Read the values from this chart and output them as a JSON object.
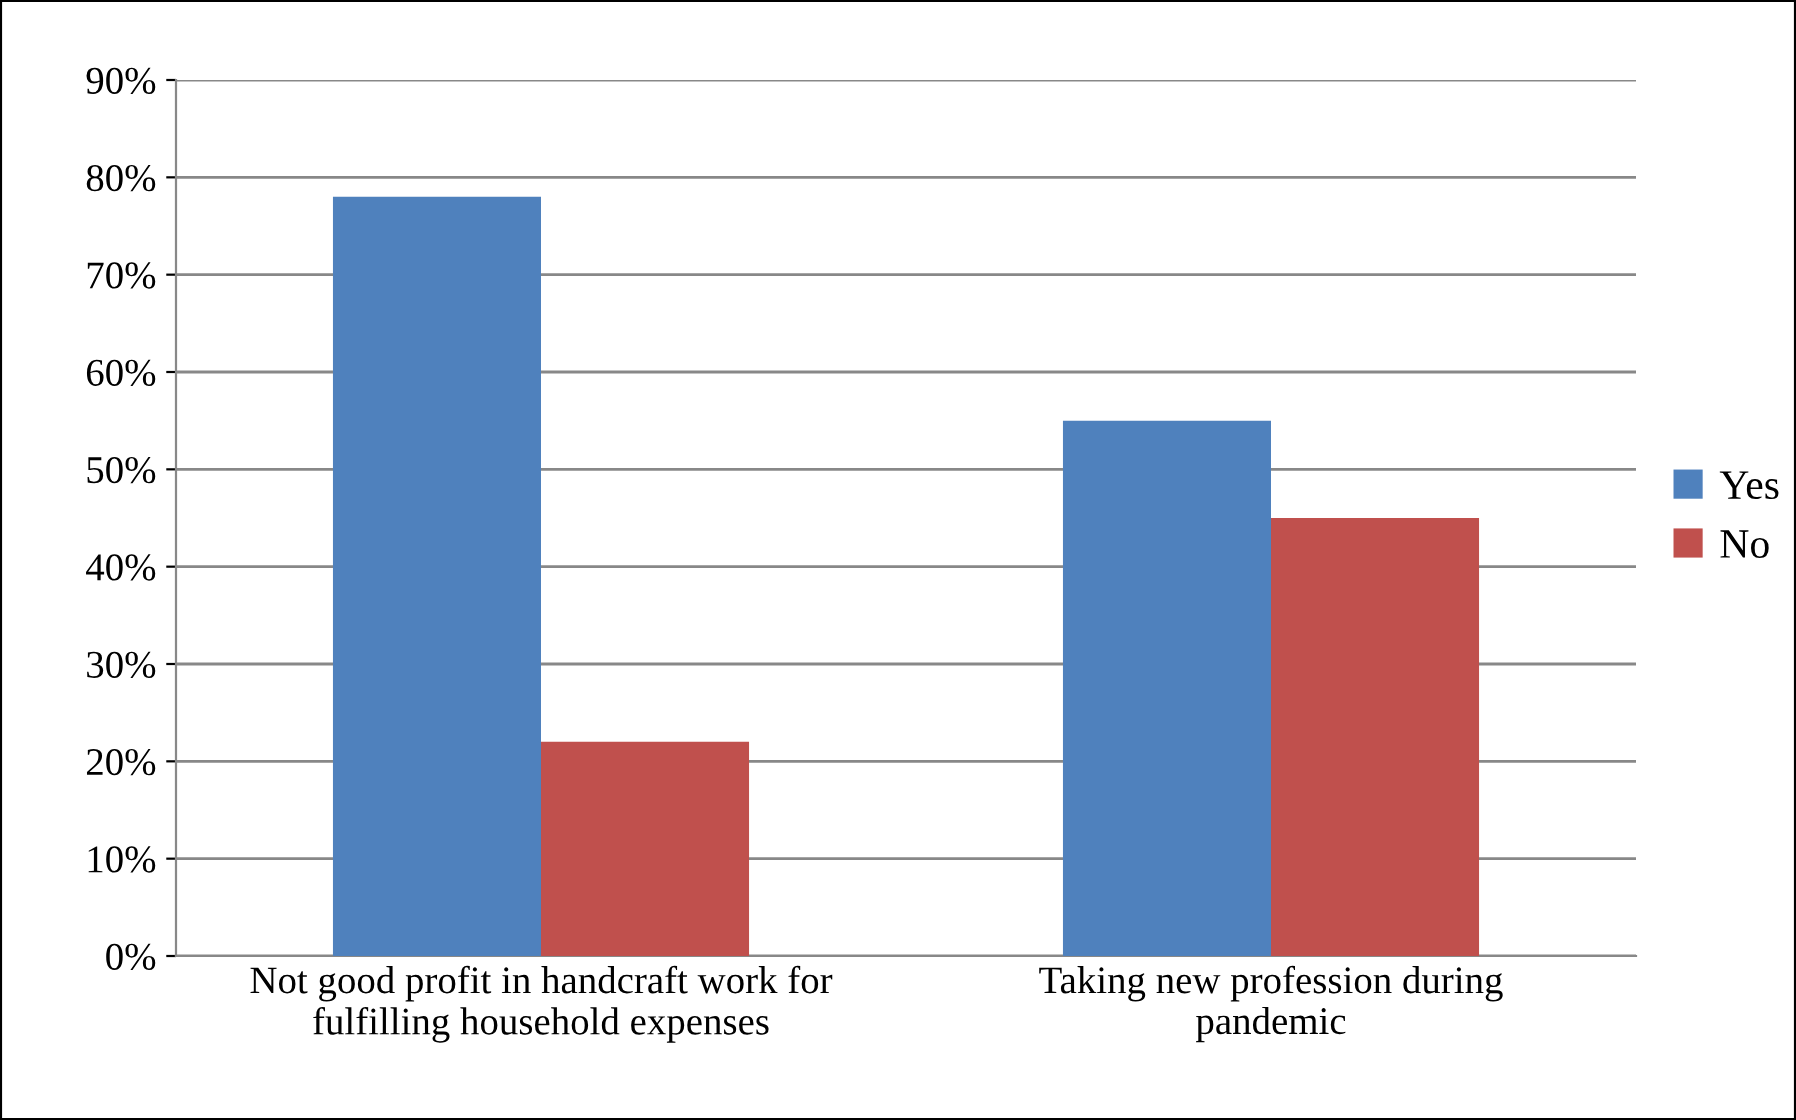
{
  "chart_data": {
    "type": "bar",
    "categories": [
      "Not good profit in handcraft work for\nfulfilling household expenses",
      "Taking new profession during\npandemic"
    ],
    "series": [
      {
        "name": "Yes",
        "color": "#4f81bd",
        "values": [
          78,
          55
        ]
      },
      {
        "name": "No",
        "color": "#c0504d",
        "values": [
          22,
          45
        ]
      }
    ],
    "ylim": [
      0,
      90
    ],
    "yticks": [
      {
        "value": 0,
        "label": "0%"
      },
      {
        "value": 10,
        "label": "10%"
      },
      {
        "value": 20,
        "label": "20%"
      },
      {
        "value": 30,
        "label": "30%"
      },
      {
        "value": 40,
        "label": "40%"
      },
      {
        "value": 50,
        "label": "50%"
      },
      {
        "value": 60,
        "label": "60%"
      },
      {
        "value": 70,
        "label": "70%"
      },
      {
        "value": 80,
        "label": "80%"
      },
      {
        "value": 90,
        "label": "90%"
      }
    ],
    "grid": "y",
    "legend": "right"
  }
}
